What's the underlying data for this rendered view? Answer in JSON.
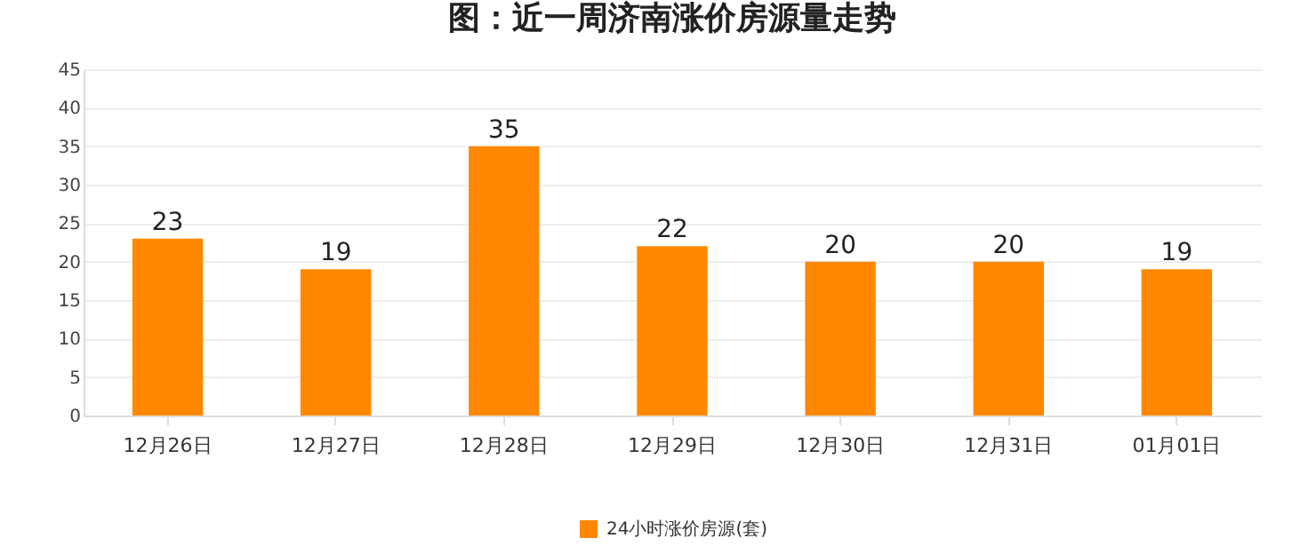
{
  "chart_data": {
    "type": "bar",
    "title": "图：近一周济南涨价房源量走势",
    "categories": [
      "12月26日",
      "12月27日",
      "12月28日",
      "12月29日",
      "12月30日",
      "12月31日",
      "01月01日"
    ],
    "series": [
      {
        "name": "24小时涨价房源(套)",
        "color": "#ff8800",
        "values": [
          23,
          19,
          35,
          22,
          20,
          20,
          19
        ]
      }
    ],
    "ylim": [
      0,
      45
    ],
    "yticks": [
      0,
      5,
      10,
      15,
      20,
      25,
      30,
      35,
      40,
      45
    ],
    "grid": "y",
    "legend": "bottom",
    "data_labels": true
  }
}
